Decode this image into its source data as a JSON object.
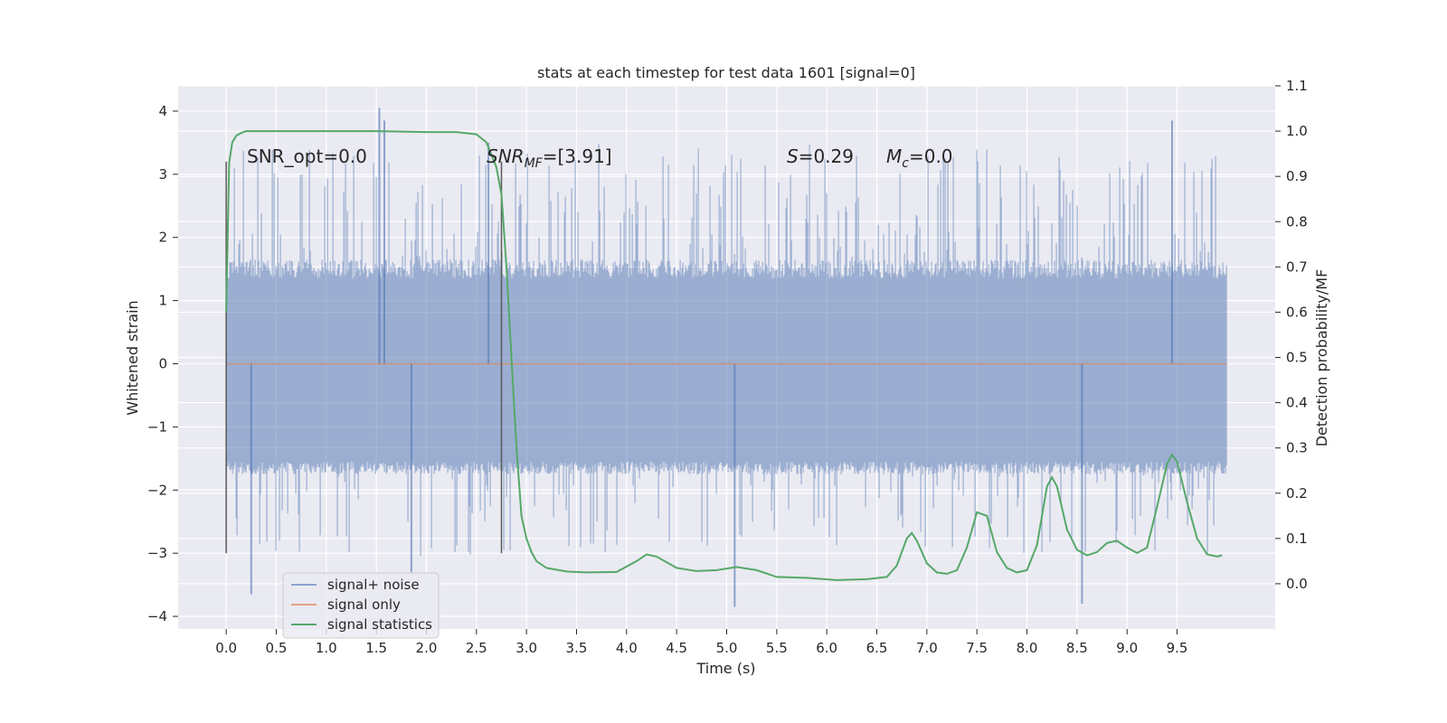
{
  "chart_data": {
    "type": "line",
    "title": "stats at each timestep for test data 1601 [signal=0]",
    "xlabel": "Time (s)",
    "ylabel": "Whitened strain",
    "y2label": "Detection probability/MF",
    "xlim": [
      -0.48,
      10.48
    ],
    "ylim": [
      -4.2,
      4.4
    ],
    "y2lim": [
      -0.1,
      1.1
    ],
    "x_ticks": [
      "0.0",
      "0.5",
      "1.0",
      "1.5",
      "2.0",
      "2.5",
      "3.0",
      "3.5",
      "4.0",
      "4.5",
      "5.0",
      "5.5",
      "6.0",
      "6.5",
      "7.0",
      "7.5",
      "8.0",
      "8.5",
      "9.0",
      "9.5"
    ],
    "y_ticks": [
      "4",
      "3",
      "2",
      "1",
      "0",
      "−1",
      "−2",
      "−3",
      "−4"
    ],
    "y2_ticks": [
      "1.1",
      "1.0",
      "0.9",
      "0.8",
      "0.7",
      "0.6",
      "0.5",
      "0.4",
      "0.3",
      "0.2",
      "0.1",
      "0.0"
    ],
    "grid": true,
    "legend_placement": "lower-left",
    "annotations": [
      {
        "text": "SNR_opt=0.0",
        "x": 0.2,
        "y": 3.2
      },
      {
        "text_main": "SNR",
        "text_sub": "MF",
        "text_tail": "=[3.91]",
        "x": 2.6,
        "y": 3.2
      },
      {
        "text_main": "S",
        "text_tail": "=0.29",
        "x": 5.6,
        "y": 3.2
      },
      {
        "text_main": "M",
        "text_sub": "c",
        "text_tail": "=0.0",
        "x": 6.6,
        "y": 3.2
      }
    ],
    "vertical_markers": [
      {
        "x": 0.0,
        "y_range": [
          -3.0,
          3.2
        ]
      },
      {
        "x": 2.75,
        "y_range": [
          -3.0,
          3.2
        ]
      }
    ],
    "series": [
      {
        "name": "signal+ noise",
        "color": "#4c72b0",
        "axis": "left",
        "kind": "noise",
        "x_range": [
          0.0,
          10.0
        ],
        "envelope_typical": [
          -1.75,
          1.35
        ],
        "extreme_peaks": [
          {
            "x": 1.53,
            "y": 4.05
          },
          {
            "x": 1.58,
            "y": 3.85
          },
          {
            "x": 2.62,
            "y": 3.5
          },
          {
            "x": 9.45,
            "y": 3.85
          },
          {
            "x": 5.08,
            "y": -3.85
          },
          {
            "x": 8.55,
            "y": -3.8
          },
          {
            "x": 0.25,
            "y": -3.65
          },
          {
            "x": 1.85,
            "y": -3.3
          }
        ]
      },
      {
        "name": "signal only",
        "color": "#dd8452",
        "axis": "left",
        "x": [
          0.0,
          10.0
        ],
        "y": [
          0.0,
          0.0
        ]
      },
      {
        "name": "signal statistics",
        "color": "#55a868",
        "axis": "right",
        "x": [
          0.0,
          0.03,
          0.06,
          0.1,
          0.15,
          0.2,
          0.3,
          0.5,
          1.0,
          1.5,
          2.0,
          2.3,
          2.5,
          2.6,
          2.7,
          2.75,
          2.8,
          2.85,
          2.9,
          2.95,
          3.0,
          3.05,
          3.1,
          3.2,
          3.4,
          3.6,
          3.9,
          4.1,
          4.2,
          4.3,
          4.5,
          4.7,
          4.9,
          5.1,
          5.3,
          5.5,
          5.8,
          6.1,
          6.4,
          6.6,
          6.7,
          6.8,
          6.85,
          6.9,
          7.0,
          7.1,
          7.2,
          7.3,
          7.4,
          7.5,
          7.6,
          7.7,
          7.8,
          7.9,
          8.0,
          8.1,
          8.2,
          8.25,
          8.3,
          8.4,
          8.5,
          8.6,
          8.7,
          8.8,
          8.9,
          9.0,
          9.1,
          9.2,
          9.3,
          9.4,
          9.45,
          9.5,
          9.6,
          9.7,
          9.8,
          9.9,
          9.95
        ],
        "y": [
          0.6,
          0.93,
          0.975,
          0.99,
          0.996,
          1.0,
          1.0,
          1.0,
          1.0,
          1.0,
          0.998,
          0.998,
          0.993,
          0.975,
          0.92,
          0.86,
          0.7,
          0.5,
          0.3,
          0.15,
          0.1,
          0.07,
          0.05,
          0.035,
          0.027,
          0.025,
          0.026,
          0.05,
          0.065,
          0.06,
          0.035,
          0.028,
          0.03,
          0.037,
          0.03,
          0.015,
          0.013,
          0.008,
          0.01,
          0.015,
          0.04,
          0.1,
          0.112,
          0.095,
          0.045,
          0.025,
          0.022,
          0.03,
          0.08,
          0.158,
          0.15,
          0.07,
          0.035,
          0.025,
          0.03,
          0.085,
          0.215,
          0.235,
          0.215,
          0.12,
          0.075,
          0.063,
          0.07,
          0.09,
          0.095,
          0.08,
          0.068,
          0.08,
          0.17,
          0.265,
          0.285,
          0.27,
          0.18,
          0.1,
          0.065,
          0.06,
          0.063
        ]
      }
    ]
  }
}
